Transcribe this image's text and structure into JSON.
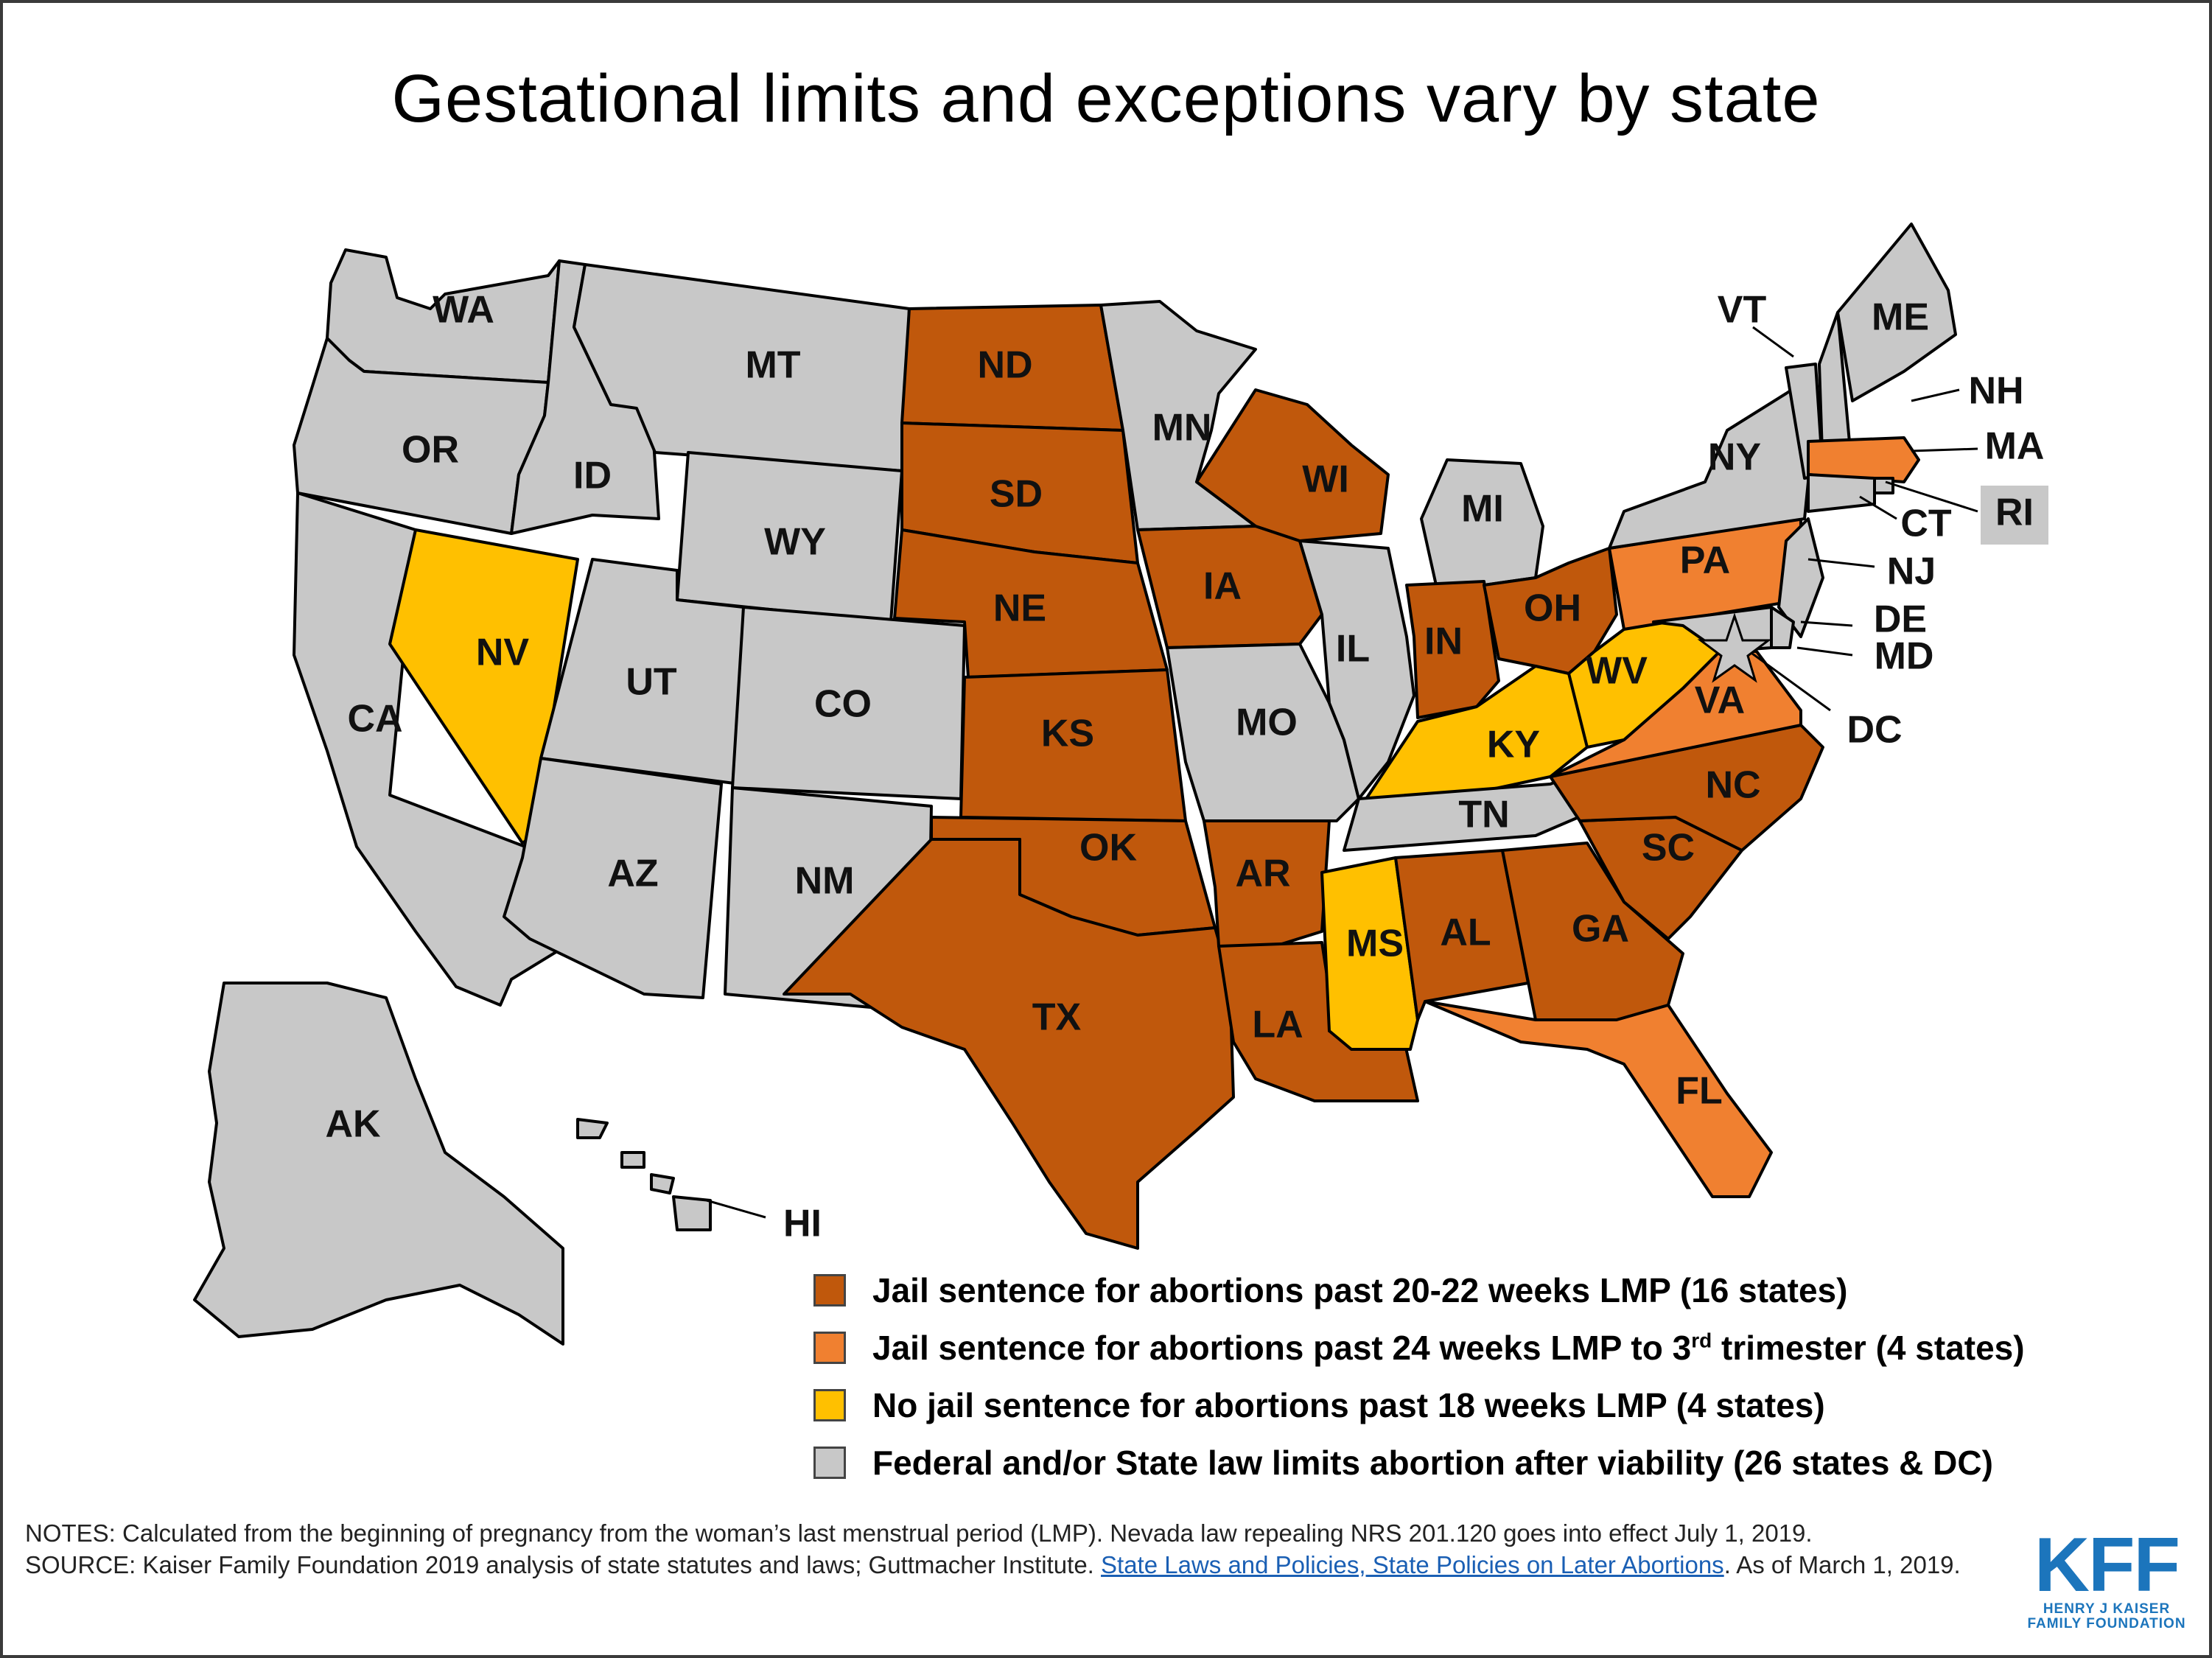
{
  "title": "Gestational limits and exceptions vary by state",
  "colors": {
    "jail_20_22": "#c0580c",
    "jail_24": "#f08030",
    "no_jail_18": "#ffc000",
    "viability": "#c8c8c8"
  },
  "legend": [
    {
      "key": "jail_20_22",
      "text": "Jail sentence for abortions past 20-22 weeks LMP (16 states)"
    },
    {
      "key": "jail_24",
      "text_before": "Jail sentence for abortions past 24 weeks LMP to 3",
      "text_sup": "rd",
      "text_after": " trimester (4 states)"
    },
    {
      "key": "no_jail_18",
      "text": "No jail sentence for abortions past 18 weeks LMP (4 states)"
    },
    {
      "key": "viability",
      "text": "Federal and/or State law limits abortion after viability (26 states & DC)"
    }
  ],
  "states": {
    "WA": "viability",
    "OR": "viability",
    "CA": "viability",
    "ID": "viability",
    "NV": "no_jail_18",
    "MT": "viability",
    "WY": "viability",
    "UT": "viability",
    "AZ": "viability",
    "CO": "viability",
    "NM": "viability",
    "ND": "jail_20_22",
    "SD": "jail_20_22",
    "NE": "jail_20_22",
    "KS": "jail_20_22",
    "OK": "jail_20_22",
    "TX": "jail_20_22",
    "MN": "viability",
    "IA": "jail_20_22",
    "MO": "viability",
    "AR": "jail_20_22",
    "LA": "jail_20_22",
    "WI": "jail_20_22",
    "IL": "viability",
    "MI": "viability",
    "IN": "jail_20_22",
    "OH": "jail_20_22",
    "KY": "no_jail_18",
    "TN": "viability",
    "MS": "no_jail_18",
    "AL": "jail_20_22",
    "GA": "jail_20_22",
    "FL": "jail_24",
    "SC": "jail_20_22",
    "NC": "jail_20_22",
    "VA": "jail_24",
    "WV": "no_jail_18",
    "PA": "jail_24",
    "NY": "viability",
    "VT": "viability",
    "NH": "viability",
    "ME": "viability",
    "MA": "jail_24",
    "RI": "viability",
    "CT": "viability",
    "NJ": "viability",
    "DE": "viability",
    "MD": "viability",
    "DC": "viability",
    "AK": "viability",
    "HI": "viability"
  },
  "state_labels": [
    "WA",
    "OR",
    "CA",
    "ID",
    "NV",
    "MT",
    "WY",
    "UT",
    "AZ",
    "CO",
    "NM",
    "ND",
    "SD",
    "NE",
    "KS",
    "OK",
    "TX",
    "MN",
    "IA",
    "MO",
    "AR",
    "LA",
    "WI",
    "IL",
    "MI",
    "IN",
    "OH",
    "KY",
    "TN",
    "MS",
    "AL",
    "GA",
    "FL",
    "SC",
    "NC",
    "VA",
    "WV",
    "PA",
    "NY",
    "VT",
    "NH",
    "ME",
    "MA",
    "RI",
    "CT",
    "NJ",
    "DE",
    "MD",
    "DC",
    "AK",
    "HI"
  ],
  "notes": {
    "line1": "NOTES:  Calculated from the beginning of pregnancy from the woman’s last menstrual period (LMP). Nevada law repealing NRS 201.120 goes into effect July 1, 2019.",
    "source_prefix": "SOURCE:  Kaiser Family Foundation 2019 analysis of state statutes and laws; Guttmacher Institute. ",
    "source_link": "State Laws and Policies, State Policies on Later Abortions",
    "source_suffix": ". As of March 1, 2019."
  },
  "logo": {
    "mark": "KFF",
    "sub1": "HENRY J KAISER",
    "sub2": "FAMILY FOUNDATION"
  }
}
